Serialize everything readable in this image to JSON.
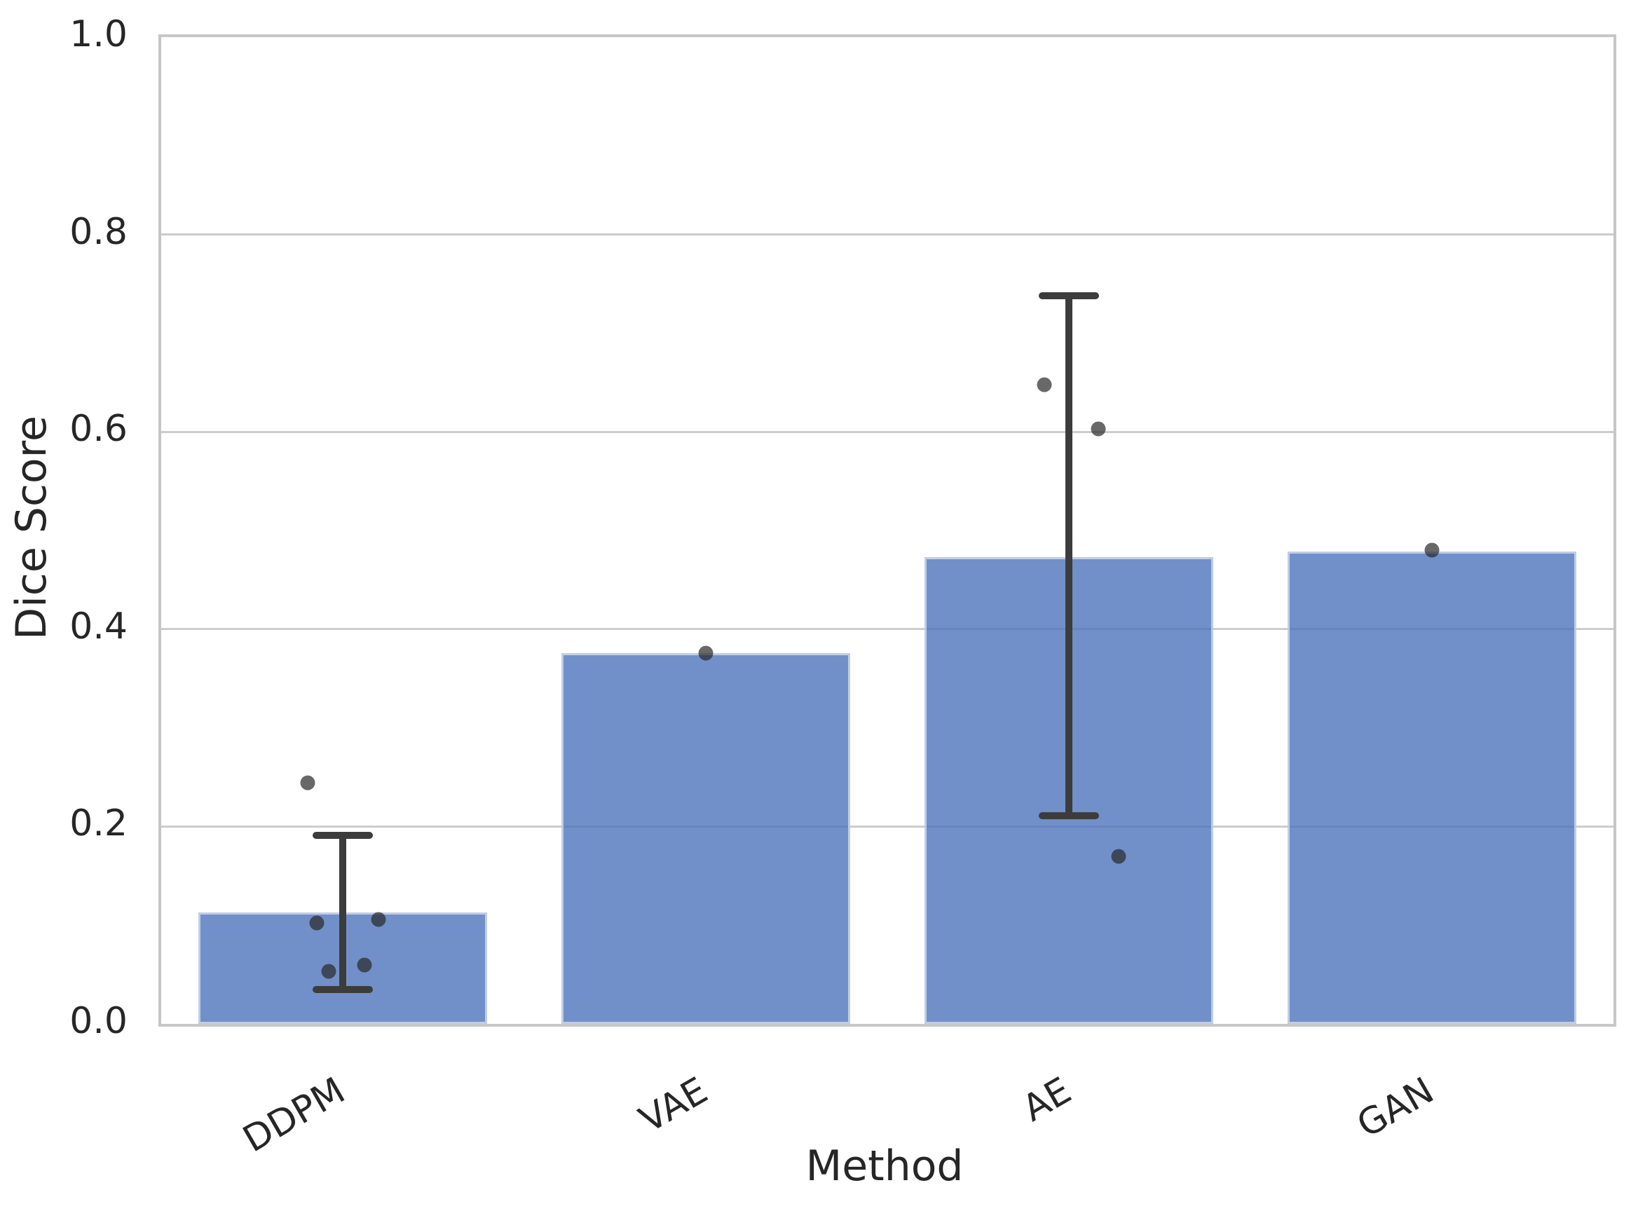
{
  "chart_data": {
    "type": "bar",
    "title": "",
    "xlabel": "Method",
    "ylabel": "Dice Score",
    "ylim": [
      0.0,
      1.0
    ],
    "ytick_labels": [
      "0.0",
      "0.2",
      "0.4",
      "0.6",
      "0.8",
      "1.0"
    ],
    "yticks": [
      0.0,
      0.2,
      0.4,
      0.6,
      0.8,
      1.0
    ],
    "grid": "horizontal",
    "legend": "none",
    "categories": [
      "DDPM",
      "VAE",
      "AE",
      "GAN"
    ],
    "series": [
      {
        "name": "Dice Score",
        "values": [
          0.113,
          0.376,
          0.473,
          0.479
        ]
      }
    ],
    "error_bars": [
      {
        "category": "DDPM",
        "low": 0.035,
        "high": 0.191
      },
      {
        "category": "VAE",
        "low": null,
        "high": null
      },
      {
        "category": "AE",
        "low": 0.211,
        "high": 0.738
      },
      {
        "category": "GAN",
        "low": null,
        "high": null
      }
    ],
    "scatter_points": [
      {
        "category": "DDPM",
        "value": 0.244,
        "jitter": -50
      },
      {
        "category": "DDPM",
        "value": 0.106,
        "jitter": 51
      },
      {
        "category": "DDPM",
        "value": 0.102,
        "jitter": -37
      },
      {
        "category": "DDPM",
        "value": 0.06,
        "jitter": 31
      },
      {
        "category": "DDPM",
        "value": 0.053,
        "jitter": -20
      },
      {
        "category": "VAE",
        "value": 0.376,
        "jitter": 0
      },
      {
        "category": "AE",
        "value": 0.648,
        "jitter": -35
      },
      {
        "category": "AE",
        "value": 0.603,
        "jitter": 42
      },
      {
        "category": "AE",
        "value": 0.17,
        "jitter": 71
      },
      {
        "category": "GAN",
        "value": 0.48,
        "jitter": 0
      }
    ],
    "colors": {
      "bar_fill": "#7795ce",
      "bar_edge": "#dbe2f0",
      "error_bar": "#3c3c3c",
      "point": "rgba(40,40,40,0.70)",
      "gridline": "#cdcdcd",
      "spine": "#c6c6c6",
      "text": "#262626"
    }
  }
}
